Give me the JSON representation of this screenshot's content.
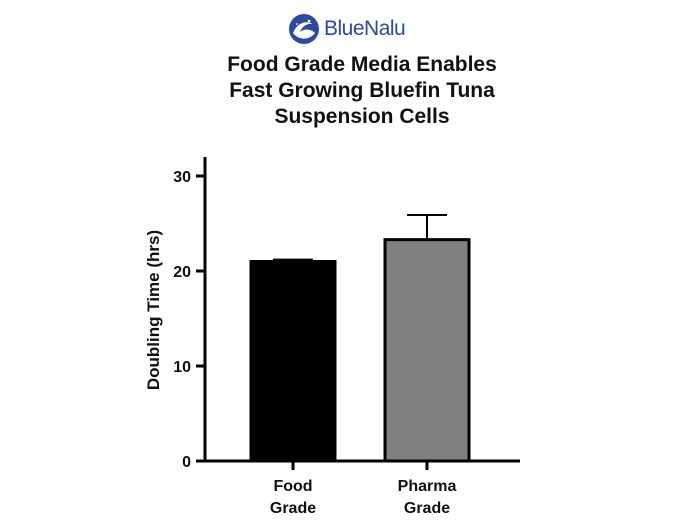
{
  "logo": {
    "text": "BlueNalu",
    "icon": "bluenalu-wave-logo-icon",
    "color": "#2e4a9a"
  },
  "chart_data": {
    "type": "bar",
    "title": [
      "Food Grade Media Enables",
      "Fast Growing Bluefin Tuna",
      "Suspension Cells"
    ],
    "xlabel": "",
    "ylabel": "Doubling Time (hrs)",
    "ylim": [
      0,
      32
    ],
    "yticks": [
      0,
      10,
      20,
      30
    ],
    "categories": [
      [
        "Food",
        "Grade"
      ],
      [
        "Pharma",
        "Grade"
      ]
    ],
    "values": [
      21.0,
      23.3
    ],
    "error_upper": [
      0.2,
      2.6
    ],
    "colors": [
      "#000000",
      "#808080"
    ],
    "grid": false,
    "legend": "none"
  }
}
